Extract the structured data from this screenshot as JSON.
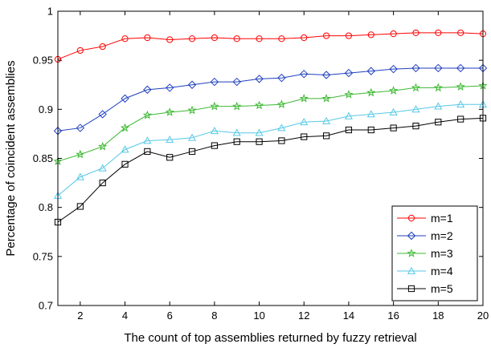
{
  "chart_data": {
    "type": "line",
    "xlabel": "The count of top assemblies returned by fuzzy retrieval",
    "ylabel": "Percentage of coincident assemblies",
    "xlim": [
      1,
      20
    ],
    "ylim": [
      0.7,
      1
    ],
    "xticks": [
      2,
      4,
      6,
      8,
      10,
      12,
      14,
      16,
      18,
      20
    ],
    "yticks": [
      0.7,
      0.75,
      0.8,
      0.85,
      0.9,
      0.95,
      1
    ],
    "ytick_labels": [
      "0.7",
      "0.75",
      "0.8",
      "0.85",
      "0.9",
      "0.95",
      "1"
    ],
    "grid": false,
    "legend_position": "bottom-right",
    "x": [
      1,
      2,
      3,
      4,
      5,
      6,
      7,
      8,
      9,
      10,
      11,
      12,
      13,
      14,
      15,
      16,
      17,
      18,
      19,
      20
    ],
    "series": [
      {
        "name": "m=1",
        "color": "#ff0000",
        "marker": "circle",
        "values": [
          0.951,
          0.96,
          0.964,
          0.972,
          0.973,
          0.971,
          0.972,
          0.973,
          0.972,
          0.972,
          0.972,
          0.973,
          0.975,
          0.975,
          0.976,
          0.977,
          0.978,
          0.978,
          0.978,
          0.977
        ]
      },
      {
        "name": "m=2",
        "color": "#1f3fbf",
        "marker": "diamond",
        "values": [
          0.878,
          0.881,
          0.895,
          0.911,
          0.92,
          0.922,
          0.925,
          0.928,
          0.928,
          0.931,
          0.932,
          0.936,
          0.935,
          0.937,
          0.939,
          0.941,
          0.942,
          0.942,
          0.942,
          0.942
        ]
      },
      {
        "name": "m=3",
        "color": "#3cb832",
        "marker": "star",
        "values": [
          0.847,
          0.854,
          0.862,
          0.881,
          0.894,
          0.897,
          0.899,
          0.903,
          0.903,
          0.904,
          0.905,
          0.911,
          0.911,
          0.915,
          0.917,
          0.919,
          0.922,
          0.922,
          0.923,
          0.924
        ]
      },
      {
        "name": "m=4",
        "color": "#55c8e6",
        "marker": "triangle",
        "values": [
          0.812,
          0.831,
          0.84,
          0.859,
          0.868,
          0.869,
          0.871,
          0.878,
          0.876,
          0.876,
          0.881,
          0.887,
          0.888,
          0.893,
          0.895,
          0.897,
          0.9,
          0.903,
          0.905,
          0.905
        ]
      },
      {
        "name": "m=5",
        "color": "#000000",
        "marker": "square",
        "values": [
          0.785,
          0.801,
          0.825,
          0.844,
          0.857,
          0.851,
          0.857,
          0.863,
          0.867,
          0.867,
          0.868,
          0.872,
          0.873,
          0.879,
          0.879,
          0.881,
          0.883,
          0.887,
          0.89,
          0.891
        ]
      }
    ]
  }
}
